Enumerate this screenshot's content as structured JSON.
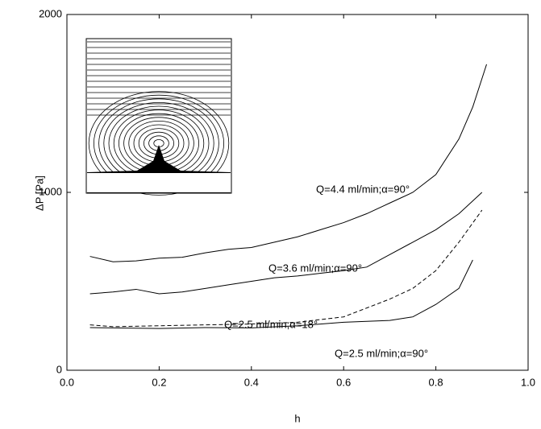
{
  "chart_data": {
    "type": "line",
    "xlabel": "h",
    "ylabel": "ΔP [Pa]",
    "xlim": [
      0,
      1
    ],
    "ylim": [
      0,
      2000
    ],
    "xticks": [
      {
        "value": 0,
        "label": "0.0"
      },
      {
        "value": 0.2,
        "label": "0.2"
      },
      {
        "value": 0.4,
        "label": "0.4"
      },
      {
        "value": 0.6,
        "label": "0.6"
      },
      {
        "value": 0.8,
        "label": "0.8"
      },
      {
        "value": 1,
        "label": "1.0"
      }
    ],
    "yticks": [
      0,
      1000,
      2000
    ],
    "annotations": [
      "Q=4.4 ml/min;α=90°",
      "Q=3.6 ml/min;α=90°",
      "Q=2.5 ml/min;α=18°",
      "Q=2.5 ml/min;α=90°"
    ],
    "series": [
      {
        "color": "#000000",
        "dashed": false,
        "x": [
          0.05,
          0.1,
          0.15,
          0.2,
          0.25,
          0.3,
          0.35,
          0.4,
          0.45,
          0.5,
          0.55,
          0.6,
          0.65,
          0.7,
          0.75,
          0.8,
          0.85,
          0.88,
          0.91
        ],
        "values": [
          640,
          610,
          615,
          630,
          635,
          660,
          680,
          690,
          720,
          750,
          790,
          830,
          880,
          940,
          1000,
          1100,
          1300,
          1480,
          1720
        ]
      },
      {
        "color": "#000000",
        "dashed": false,
        "x": [
          0.05,
          0.1,
          0.15,
          0.2,
          0.25,
          0.3,
          0.35,
          0.4,
          0.45,
          0.5,
          0.55,
          0.6,
          0.65,
          0.7,
          0.75,
          0.8,
          0.85,
          0.9
        ],
        "values": [
          430,
          440,
          455,
          430,
          440,
          460,
          480,
          500,
          520,
          530,
          545,
          560,
          580,
          650,
          720,
          790,
          880,
          1000
        ]
      },
      {
        "color": "#000000",
        "dashed": true,
        "x": [
          0.05,
          0.1,
          0.2,
          0.3,
          0.4,
          0.5,
          0.6,
          0.7,
          0.75,
          0.8,
          0.85,
          0.9
        ],
        "values": [
          255,
          245,
          250,
          255,
          260,
          270,
          300,
          400,
          460,
          560,
          720,
          900
        ]
      },
      {
        "color": "#000000",
        "dashed": false,
        "x": [
          0.05,
          0.1,
          0.2,
          0.3,
          0.4,
          0.5,
          0.6,
          0.7,
          0.75,
          0.8,
          0.85,
          0.88
        ],
        "values": [
          240,
          238,
          235,
          240,
          238,
          250,
          270,
          280,
          300,
          370,
          460,
          620
        ]
      }
    ]
  }
}
